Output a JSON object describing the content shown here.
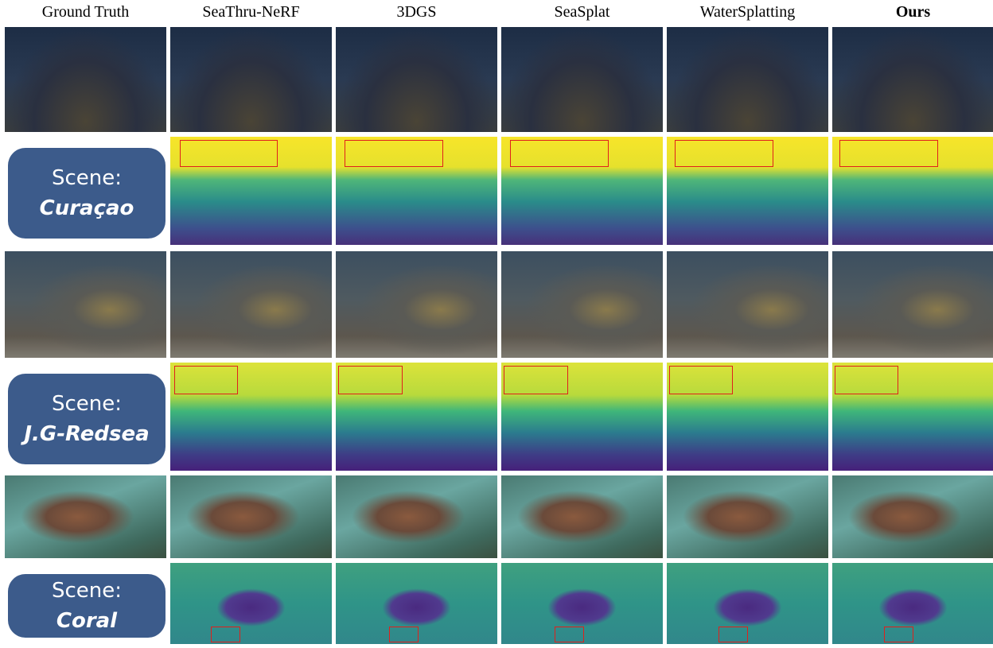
{
  "columns": [
    "Ground Truth",
    "SeaThru-NeRF",
    "3DGS",
    "SeaSplat",
    "WaterSplatting",
    "Ours"
  ],
  "scenes": [
    {
      "label": "Scene:",
      "name": "Curaçao"
    },
    {
      "label": "Scene:",
      "name": "J.G-Redsea"
    },
    {
      "label": "Scene:",
      "name": "Coral"
    }
  ]
}
